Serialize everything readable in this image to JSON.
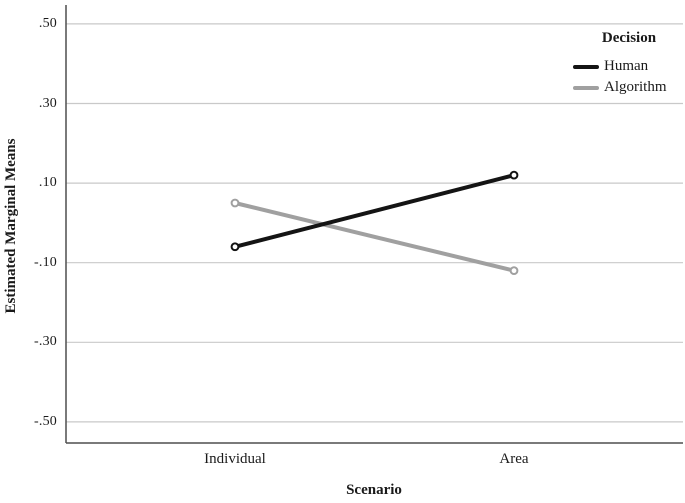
{
  "chart_data": {
    "type": "line",
    "title": "",
    "xlabel": "Scenario",
    "ylabel": "Estimated Marginal Means",
    "categories": [
      "Individual",
      "Area"
    ],
    "series": [
      {
        "name": "Human",
        "color": "#141414",
        "values": [
          -0.06,
          0.12
        ]
      },
      {
        "name": "Algorithm",
        "color": "#a0a0a0",
        "values": [
          0.05,
          -0.12
        ]
      }
    ],
    "yticks": [
      0.5,
      0.3,
      0.1,
      -0.1,
      -0.3,
      -0.5
    ],
    "ytick_labels": [
      ".50",
      ".30",
      ".10",
      "-.10",
      "-.30",
      "-.50"
    ],
    "ylim": [
      -0.553,
      0.548
    ],
    "grid": "horizontal",
    "marker": "open-circle",
    "legend": {
      "title": "Decision",
      "entries": [
        "Human",
        "Algorithm"
      ],
      "position": "top-right"
    }
  },
  "colors": {
    "background": "#ffffff",
    "gridline": "#c9c9c9",
    "axis": "#4f4f4f",
    "text": "#1a1a1a"
  }
}
